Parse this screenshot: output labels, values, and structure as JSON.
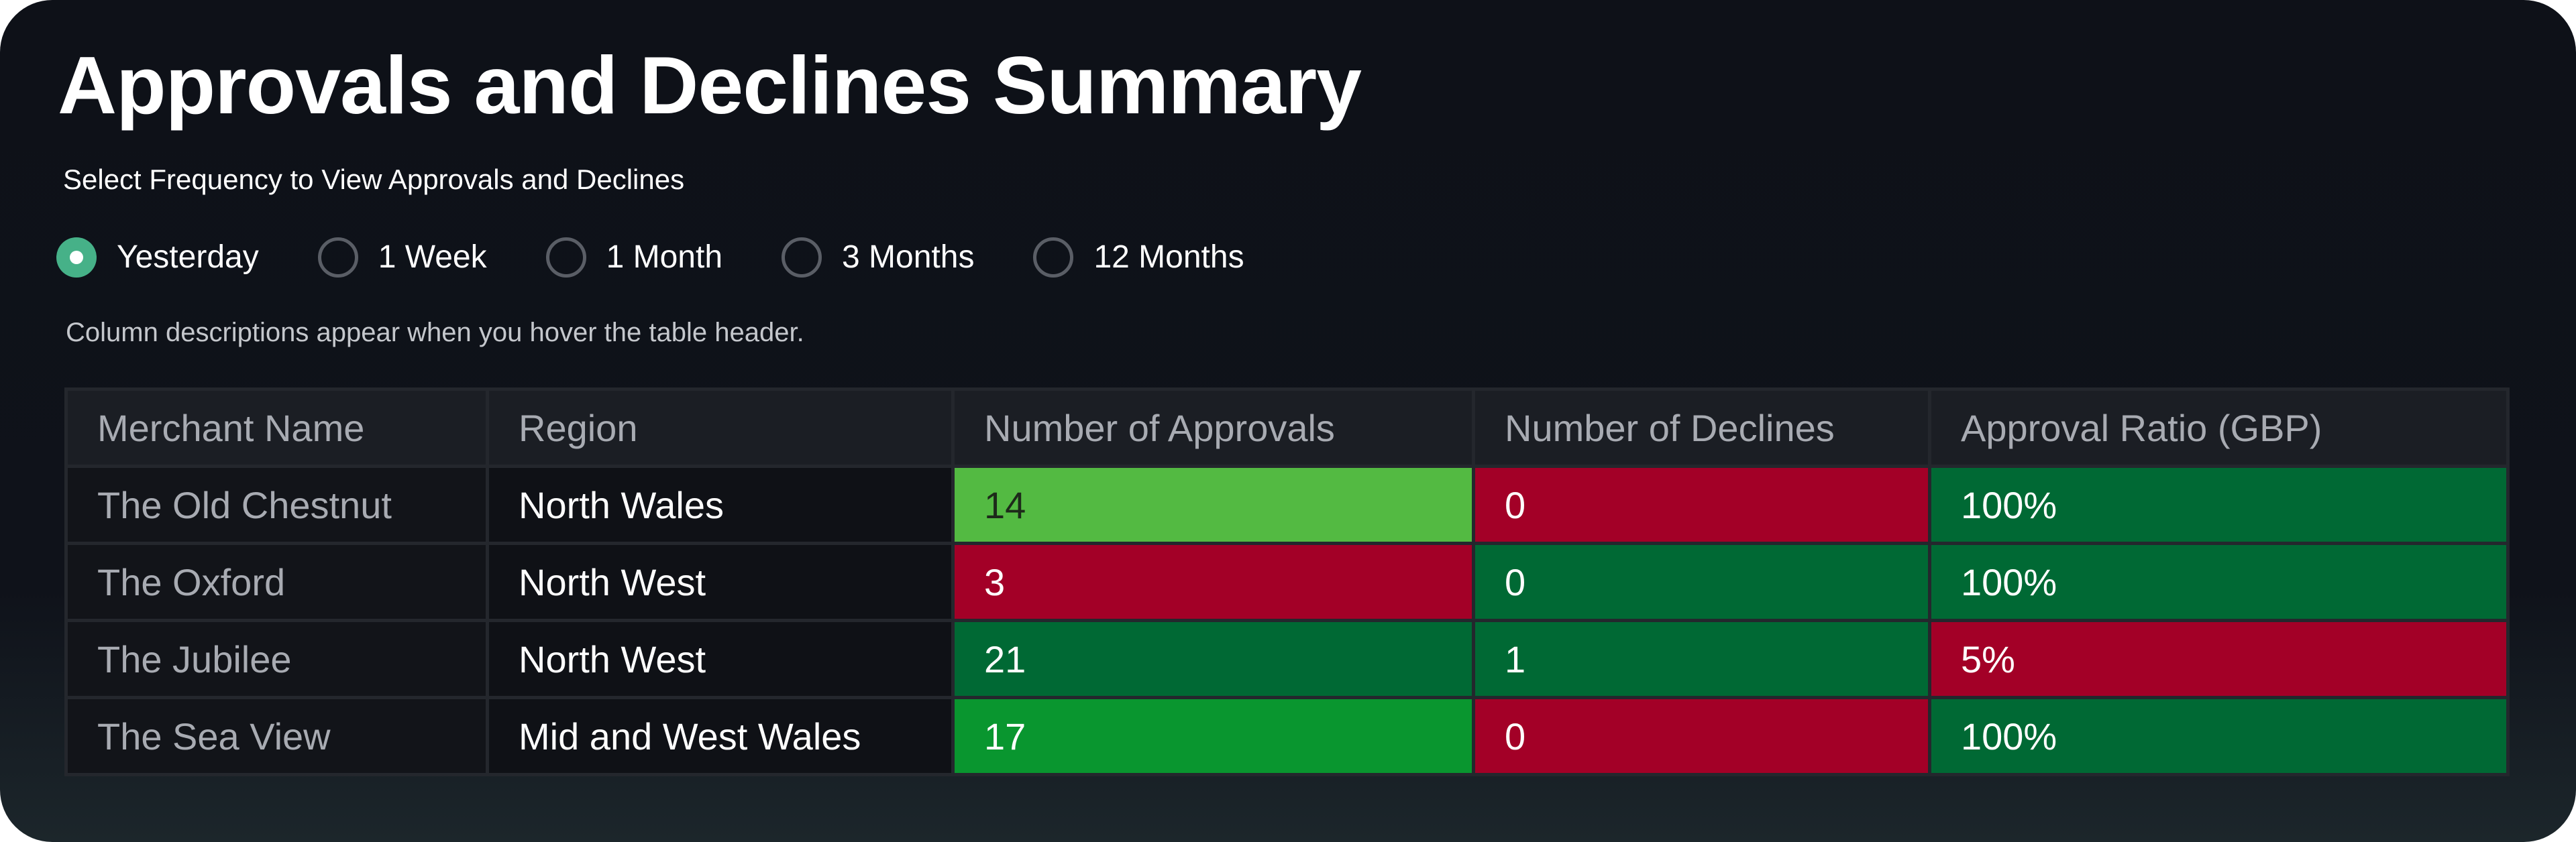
{
  "title": "Approvals and Declines Summary",
  "subtitle": "Select Frequency to View Approvals and Declines",
  "frequency": {
    "options": [
      "Yesterday",
      "1 Week",
      "1 Month",
      "3 Months",
      "12 Months"
    ],
    "selected": "Yesterday"
  },
  "hint": "Column descriptions appear when you hover the table header.",
  "table": {
    "headers": [
      "Merchant Name",
      "Region",
      "Number of Approvals",
      "Number of Declines",
      "Approval Ratio (GBP)"
    ],
    "rows": [
      {
        "merchant": "The Old Chestnut",
        "region": "North Wales",
        "approvals": "14",
        "declines": "0",
        "ratio": "100%"
      },
      {
        "merchant": "The Oxford",
        "region": "North West",
        "approvals": "3",
        "declines": "0",
        "ratio": "100%"
      },
      {
        "merchant": "The Jubilee",
        "region": "North West",
        "approvals": "21",
        "declines": "1",
        "ratio": "5%"
      },
      {
        "merchant": "The Sea View",
        "region": "Mid and West Wales",
        "approvals": "17",
        "declines": "0",
        "ratio": "100%"
      }
    ],
    "cell_colors": [
      {
        "approvals": "#53ba42",
        "declines": "#a30027",
        "ratio": "#006934"
      },
      {
        "approvals": "#a30027",
        "declines": "#006934",
        "ratio": "#006934"
      },
      {
        "approvals": "#006934",
        "declines": "#006934",
        "ratio": "#a30027"
      },
      {
        "approvals": "#09962f",
        "declines": "#a30027",
        "ratio": "#006934"
      }
    ],
    "approvals_text_color_light_cell": "#1d2a1a"
  }
}
